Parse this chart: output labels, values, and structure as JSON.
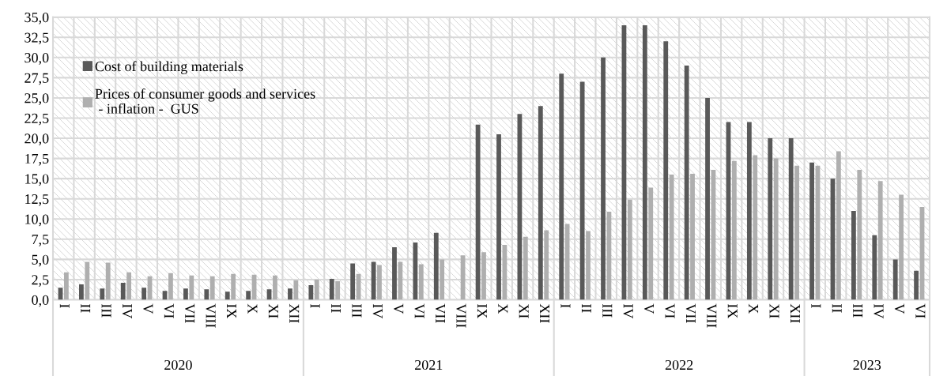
{
  "chart_data": {
    "type": "bar",
    "categories": [
      "I",
      "II",
      "III",
      "IV",
      "V",
      "VI",
      "VII",
      "VIII",
      "IX",
      "X",
      "XI",
      "XII",
      "I",
      "II",
      "III",
      "IV",
      "V",
      "VI",
      "VII",
      "VIII",
      "IX",
      "X",
      "XI",
      "XII",
      "I",
      "II",
      "III",
      "IV",
      "V",
      "VI",
      "VII",
      "VIII",
      "IX",
      "X",
      "XI",
      "XII",
      "I",
      "II",
      "III",
      "IV",
      "V",
      "VI"
    ],
    "series": [
      {
        "name": "Cost of building materials",
        "color": "#595959",
        "values": [
          1.5,
          1.9,
          1.4,
          2.1,
          1.5,
          1.1,
          1.4,
          1.3,
          1.0,
          1.1,
          1.3,
          1.4,
          1.8,
          2.6,
          4.5,
          4.7,
          6.5,
          7.1,
          8.3,
          null,
          21.7,
          20.5,
          23.0,
          24.0,
          28.0,
          27.0,
          30.0,
          34.0,
          34.0,
          32.0,
          29.0,
          25.0,
          22.0,
          22.0,
          20.0,
          20.0,
          17.0,
          15.0,
          11.0,
          8.0,
          5.0,
          3.6
        ]
      },
      {
        "name": "Prices of consumer goods and services\n - inflation -  GUS",
        "color": "#afafaf",
        "values": [
          3.4,
          4.7,
          4.6,
          3.4,
          2.9,
          3.3,
          3.0,
          2.9,
          3.2,
          3.1,
          3.0,
          2.4,
          2.5,
          2.3,
          3.2,
          4.3,
          4.7,
          4.4,
          5.0,
          5.5,
          5.9,
          6.8,
          7.8,
          8.6,
          9.4,
          8.5,
          10.9,
          12.4,
          13.9,
          15.5,
          15.6,
          16.1,
          17.2,
          17.9,
          17.5,
          16.6,
          16.6,
          18.4,
          16.1,
          14.7,
          13.0,
          11.5
        ]
      }
    ],
    "annotations": [
      "2020",
      "2021",
      "2022",
      "2023"
    ],
    "ylim": [
      0,
      35
    ],
    "yticks": [
      {
        "value": 0,
        "label": "0,0"
      },
      {
        "value": 2.5,
        "label": "2,5"
      },
      {
        "value": 5,
        "label": "5,0"
      },
      {
        "value": 7.5,
        "label": "7,5"
      },
      {
        "value": 10,
        "label": "10,0"
      },
      {
        "value": 12.5,
        "label": "12,5"
      },
      {
        "value": 15,
        "label": "15,0"
      },
      {
        "value": 17.5,
        "label": "17,5"
      },
      {
        "value": 20,
        "label": "20,0"
      },
      {
        "value": 22.5,
        "label": "22,5"
      },
      {
        "value": 25,
        "label": "25,0"
      },
      {
        "value": 27.5,
        "label": "27,5"
      },
      {
        "value": 30,
        "label": "30,0"
      },
      {
        "value": 32.5,
        "label": "32,5"
      },
      {
        "value": 35,
        "label": "35,0"
      }
    ],
    "grid": true,
    "legend": "top left"
  }
}
